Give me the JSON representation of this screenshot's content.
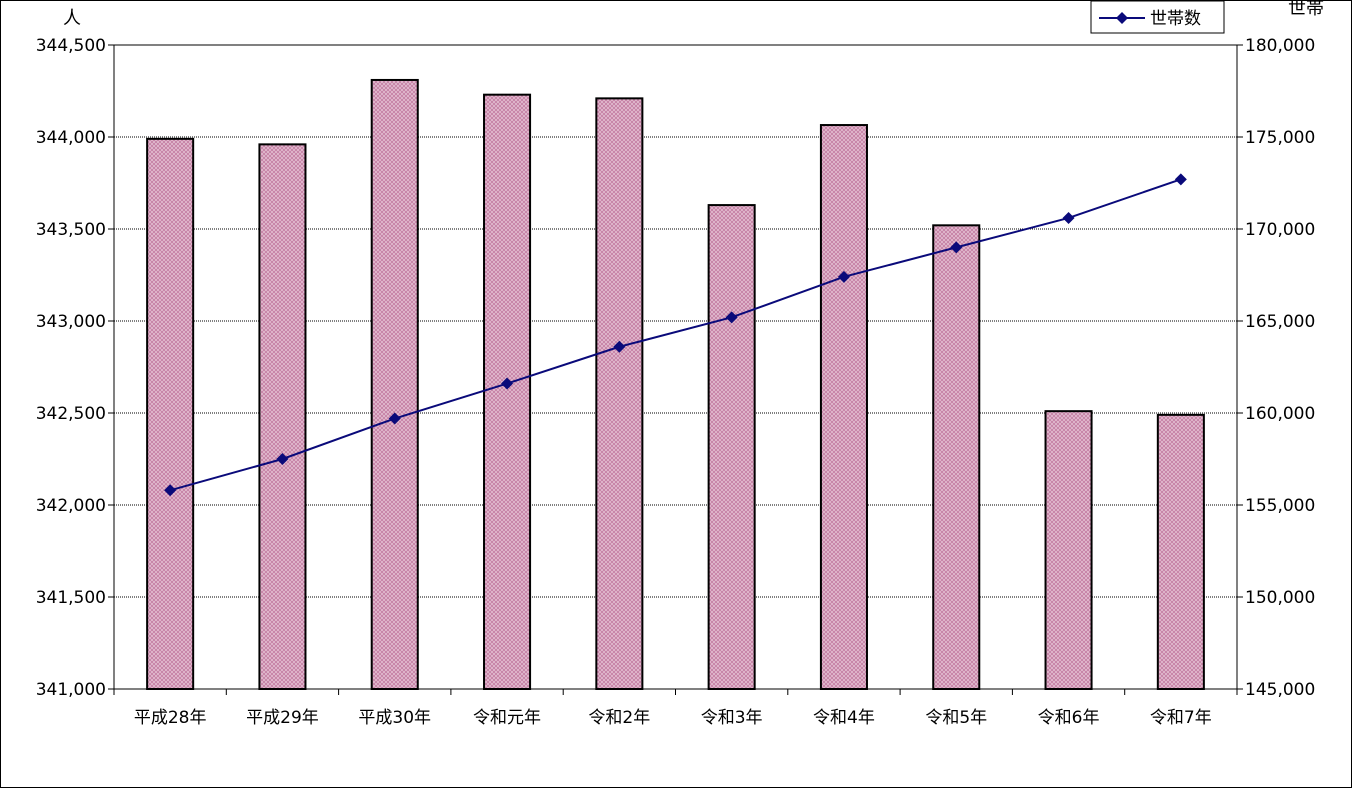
{
  "chart_data": {
    "type": "bar",
    "categories": [
      "平成28年",
      "平成29年",
      "平成30年",
      "令和元年",
      "令和2年",
      "令和3年",
      "令和4年",
      "令和5年",
      "令和6年",
      "令和7年"
    ],
    "series": [
      {
        "axis": "left",
        "type": "bar",
        "values": [
          343990,
          343960,
          344310,
          344230,
          344210,
          343630,
          344065,
          343520,
          342510,
          342490
        ],
        "color": "#c0709a"
      },
      {
        "name": "世帯数",
        "axis": "right",
        "type": "line",
        "values": [
          155800,
          157500,
          159700,
          161600,
          163600,
          165200,
          167400,
          169000,
          170600,
          172700
        ],
        "color": "#0a0a7a"
      }
    ],
    "y_left": {
      "unit_label": "人",
      "ylim": [
        341000,
        344500
      ],
      "ticks": [
        "341,000",
        "341,500",
        "342,000",
        "342,500",
        "343,000",
        "343,500",
        "344,000",
        "344,500"
      ]
    },
    "y_right": {
      "unit_label": "世帯",
      "ylim": [
        145000,
        180000
      ],
      "ticks": [
        "145,000",
        "150,000",
        "155,000",
        "160,000",
        "165,000",
        "170,000",
        "175,000",
        "180,000"
      ]
    },
    "legend": {
      "placement": "top-right",
      "entries": [
        "世帯数"
      ]
    },
    "grid": true
  }
}
